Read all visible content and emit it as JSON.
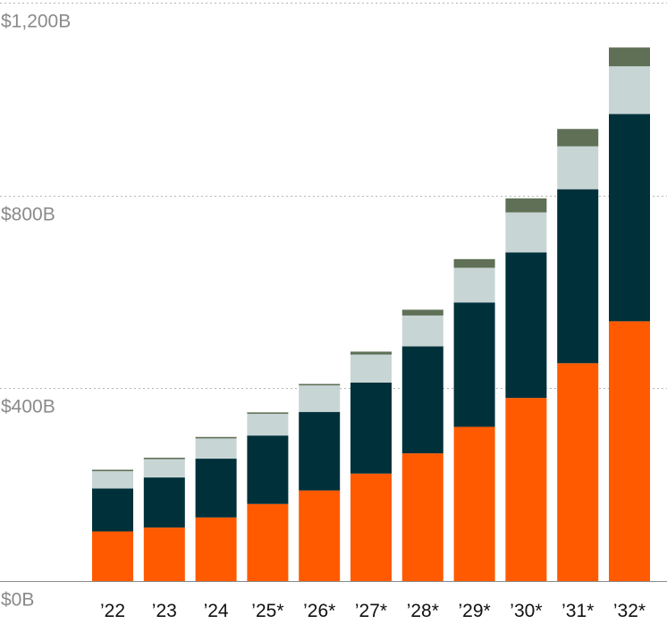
{
  "chart_data": {
    "type": "bar",
    "stacked": true,
    "categories": [
      "’22",
      "’23",
      "’24",
      "’25*",
      "’26*",
      "’27*",
      "’28*",
      "’29*",
      "’30*",
      "’31*",
      "’32*"
    ],
    "series": [
      {
        "color": "#ff5a00",
        "values": [
          103,
          111,
          132,
          160,
          188,
          223,
          265,
          320,
          380,
          452,
          539
        ]
      },
      {
        "color": "#00313b",
        "values": [
          89,
          104,
          122,
          142,
          163,
          189,
          222,
          258,
          302,
          361,
          430
        ]
      },
      {
        "color": "#c8d5d5",
        "values": [
          36,
          38,
          42,
          45,
          55,
          58,
          64,
          72,
          83,
          89,
          99
        ]
      },
      {
        "color": "#5f7057",
        "values": [
          3,
          3,
          3,
          3,
          3,
          6,
          12,
          18,
          29,
          36,
          39
        ]
      }
    ],
    "y_ticks": [
      {
        "value": 0,
        "label": "$0B"
      },
      {
        "value": 400,
        "label": "$400B"
      },
      {
        "value": 800,
        "label": "$800B"
      },
      {
        "value": 1200,
        "label": "$1,200B"
      }
    ],
    "ylim": [
      0,
      1200
    ],
    "grid": true,
    "legend": "none"
  }
}
